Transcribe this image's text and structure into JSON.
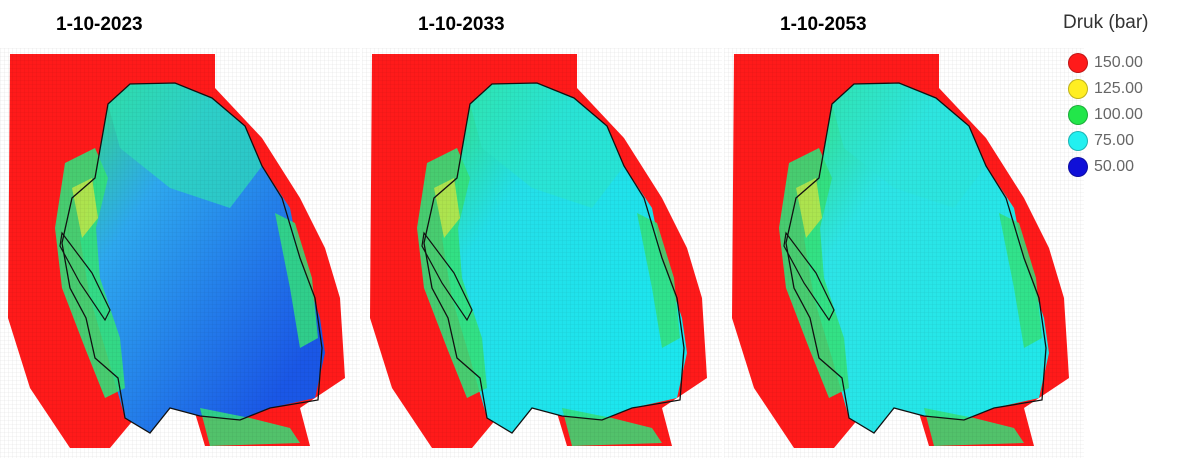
{
  "panels": [
    {
      "date": "1-10-2023",
      "low_color": "#1a57e6",
      "mid_color": "#2ea8ef"
    },
    {
      "date": "1-10-2033",
      "low_color": "#1ce6ee",
      "mid_color": "#24dfe9"
    },
    {
      "date": "1-10-2053",
      "low_color": "#22e7e9",
      "mid_color": "#2de4e6"
    }
  ],
  "legend": {
    "title": "Druk (bar)",
    "items": [
      {
        "label": "150.00",
        "color": "#ff1a1a"
      },
      {
        "label": "125.00",
        "color": "#ffee22"
      },
      {
        "label": "100.00",
        "color": "#22e64a"
      },
      {
        "label": "75.00",
        "color": "#22f0f0"
      },
      {
        "label": "50.00",
        "color": "#1010d8"
      }
    ]
  },
  "colors": {
    "outside": "#ff1a1a",
    "rim_green": "#34e07a",
    "rim_yellow": "#b8e64a",
    "outline": "#111111"
  }
}
